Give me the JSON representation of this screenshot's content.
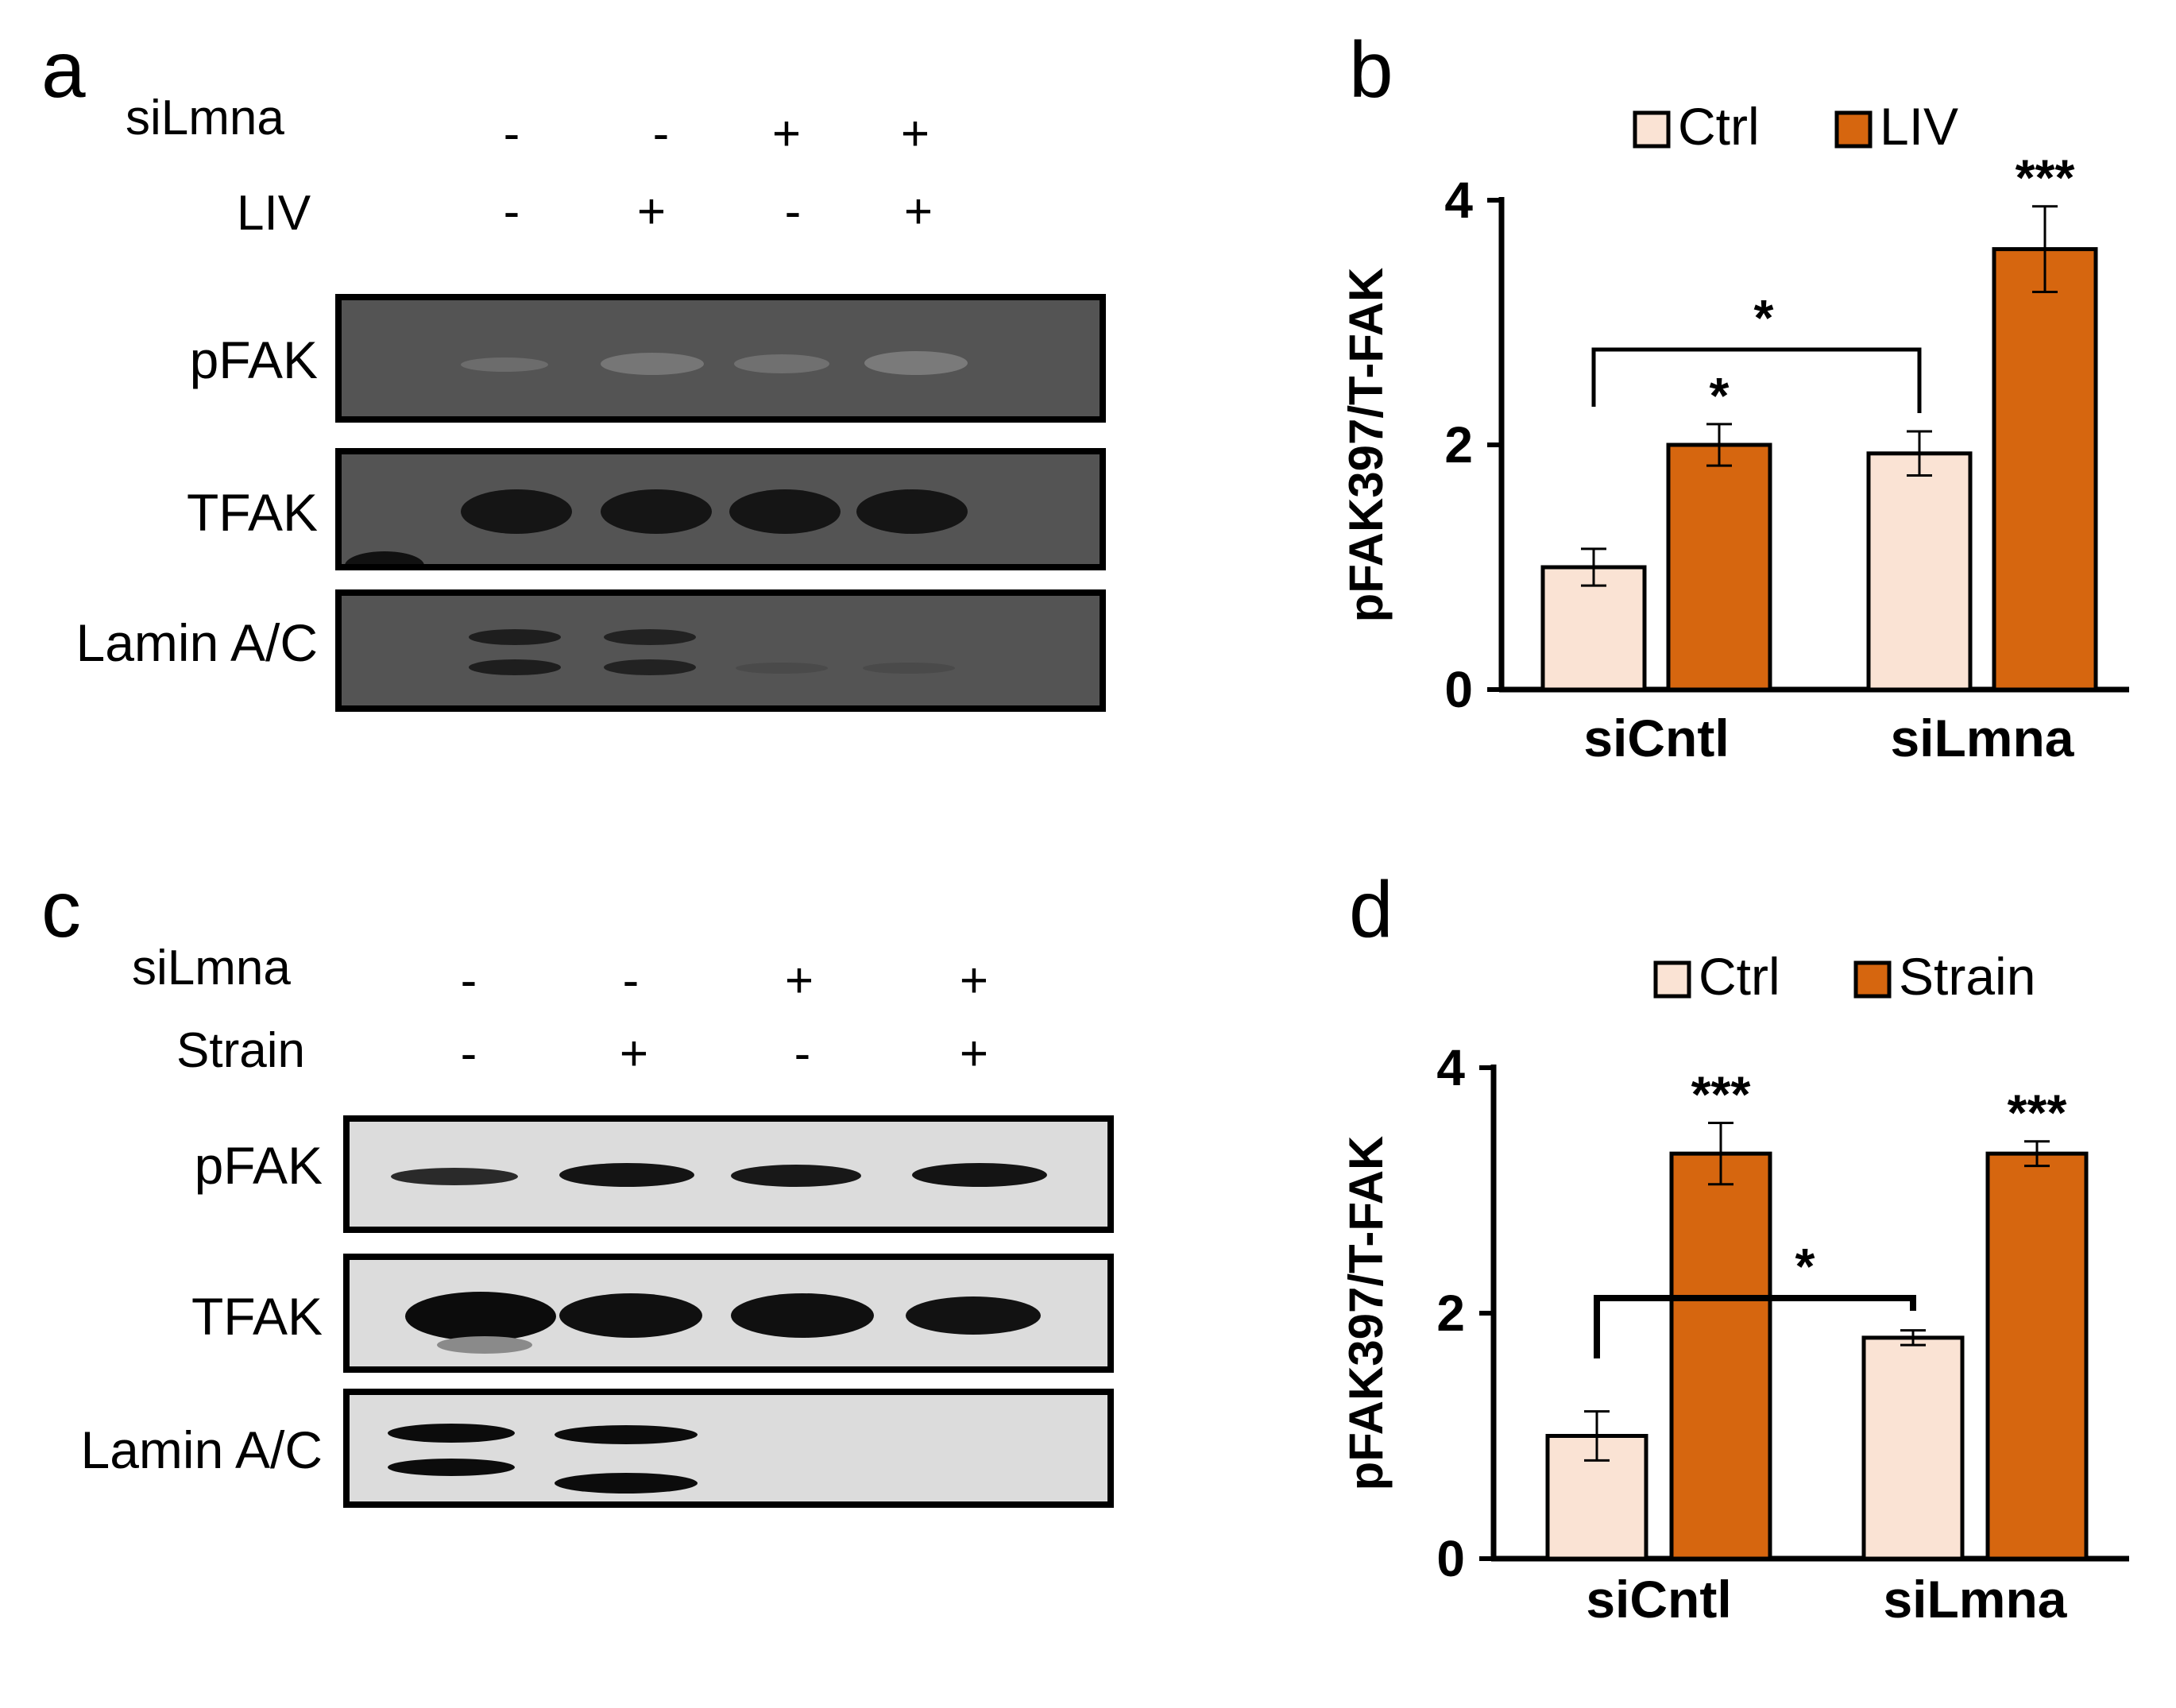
{
  "panels": {
    "a": {
      "letter": "a",
      "rows": [
        {
          "label": "siLmna",
          "signs": [
            "-",
            "-",
            "+",
            "+"
          ]
        },
        {
          "label": "LIV",
          "signs": [
            "-",
            "+",
            "-",
            "+"
          ]
        }
      ],
      "blots": [
        "pFAK",
        "TFAK",
        "Lamin A/C"
      ]
    },
    "c": {
      "letter": "c",
      "rows": [
        {
          "label": "siLmna",
          "signs": [
            "-",
            "-",
            "+",
            "+"
          ]
        },
        {
          "label": "Strain",
          "signs": [
            "-",
            "+",
            "-",
            "+"
          ]
        }
      ],
      "blots": [
        "pFAK",
        "TFAK",
        "Lamin A/C"
      ]
    }
  },
  "chart_data": [
    {
      "panel": "b",
      "type": "bar",
      "categories": [
        "siCntl",
        "siLmna"
      ],
      "series": [
        {
          "name": "Ctrl",
          "values": [
            1.0,
            1.93
          ],
          "errors": [
            0.15,
            0.18
          ],
          "color": "#fae3d4"
        },
        {
          "name": "LIV",
          "values": [
            2.0,
            3.6
          ],
          "errors": [
            0.17,
            0.35
          ],
          "color": "#d6660f"
        }
      ],
      "ylabel": "pFAK397/T-FAK",
      "ylim": [
        0,
        4
      ],
      "yticks": [
        "0",
        "2",
        "4"
      ],
      "bar_annotations": [
        "",
        "*",
        "",
        "***"
      ],
      "bracket_annotation": "*",
      "legend": "top"
    },
    {
      "panel": "d",
      "type": "bar",
      "categories": [
        "siCntl",
        "siLmna"
      ],
      "series": [
        {
          "name": "Ctrl",
          "values": [
            1.0,
            1.8
          ],
          "errors": [
            0.2,
            0.06
          ],
          "color": "#fae3d4"
        },
        {
          "name": "Strain",
          "values": [
            3.3,
            3.3
          ],
          "errors": [
            0.25,
            0.1
          ],
          "color": "#d6660f"
        }
      ],
      "ylabel": "pFAK397/T-FAK",
      "ylim": [
        0,
        4
      ],
      "yticks": [
        "0",
        "2",
        "4"
      ],
      "bar_annotations": [
        "",
        "***",
        "",
        "***"
      ],
      "bracket_annotation": "*",
      "legend": "top"
    }
  ]
}
